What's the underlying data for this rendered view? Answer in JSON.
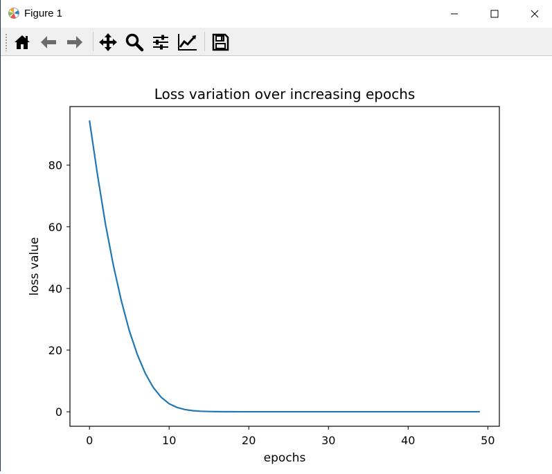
{
  "window": {
    "title": "Figure 1",
    "controls": {
      "minimize": "minimize",
      "maximize": "maximize",
      "close": "close"
    }
  },
  "toolbar": {
    "buttons": [
      {
        "name": "home",
        "icon": "home-icon"
      },
      {
        "name": "back",
        "icon": "back-arrow-icon"
      },
      {
        "name": "forward",
        "icon": "forward-arrow-icon"
      },
      {
        "name": "pan",
        "icon": "move-icon"
      },
      {
        "name": "zoom",
        "icon": "zoom-icon"
      },
      {
        "name": "subplots",
        "icon": "sliders-icon"
      },
      {
        "name": "edit-axis",
        "icon": "line-chart-icon"
      },
      {
        "name": "save",
        "icon": "floppy-save-icon"
      }
    ]
  },
  "colors": {
    "line": "#1f77b4",
    "toolbar_bg": "#f0f0f0"
  },
  "chart_data": {
    "type": "line",
    "title": "Loss variation over increasing epochs",
    "xlabel": "epochs",
    "ylabel": "loss value",
    "xlim": [
      -2.45,
      51.45
    ],
    "ylim": [
      -4.7,
      99.0
    ],
    "xticks": [
      0,
      10,
      20,
      30,
      40,
      50
    ],
    "yticks": [
      0,
      20,
      40,
      60,
      80
    ],
    "grid": false,
    "series": [
      {
        "color": "#1f77b4",
        "x": [
          0,
          1,
          2,
          3,
          4,
          5,
          6,
          7,
          8,
          9,
          10,
          11,
          12,
          13,
          14,
          15,
          16,
          17,
          18,
          19,
          20,
          21,
          22,
          23,
          24,
          25,
          26,
          27,
          28,
          29,
          30,
          31,
          32,
          33,
          34,
          35,
          36,
          37,
          38,
          39,
          40,
          41,
          42,
          43,
          44,
          45,
          46,
          47,
          48,
          49
        ],
        "y": [
          94.5,
          77.0,
          61.0,
          47.5,
          36.0,
          26.3,
          18.6,
          12.5,
          7.9,
          4.7,
          2.6,
          1.4,
          0.7,
          0.35,
          0.17,
          0.08,
          0.04,
          0.02,
          0.01,
          0.005,
          0,
          0,
          0,
          0,
          0,
          0,
          0,
          0,
          0,
          0,
          0,
          0,
          0,
          0,
          0,
          0,
          0,
          0,
          0,
          0,
          0,
          0,
          0,
          0,
          0,
          0,
          0,
          0,
          0,
          0
        ]
      }
    ]
  }
}
